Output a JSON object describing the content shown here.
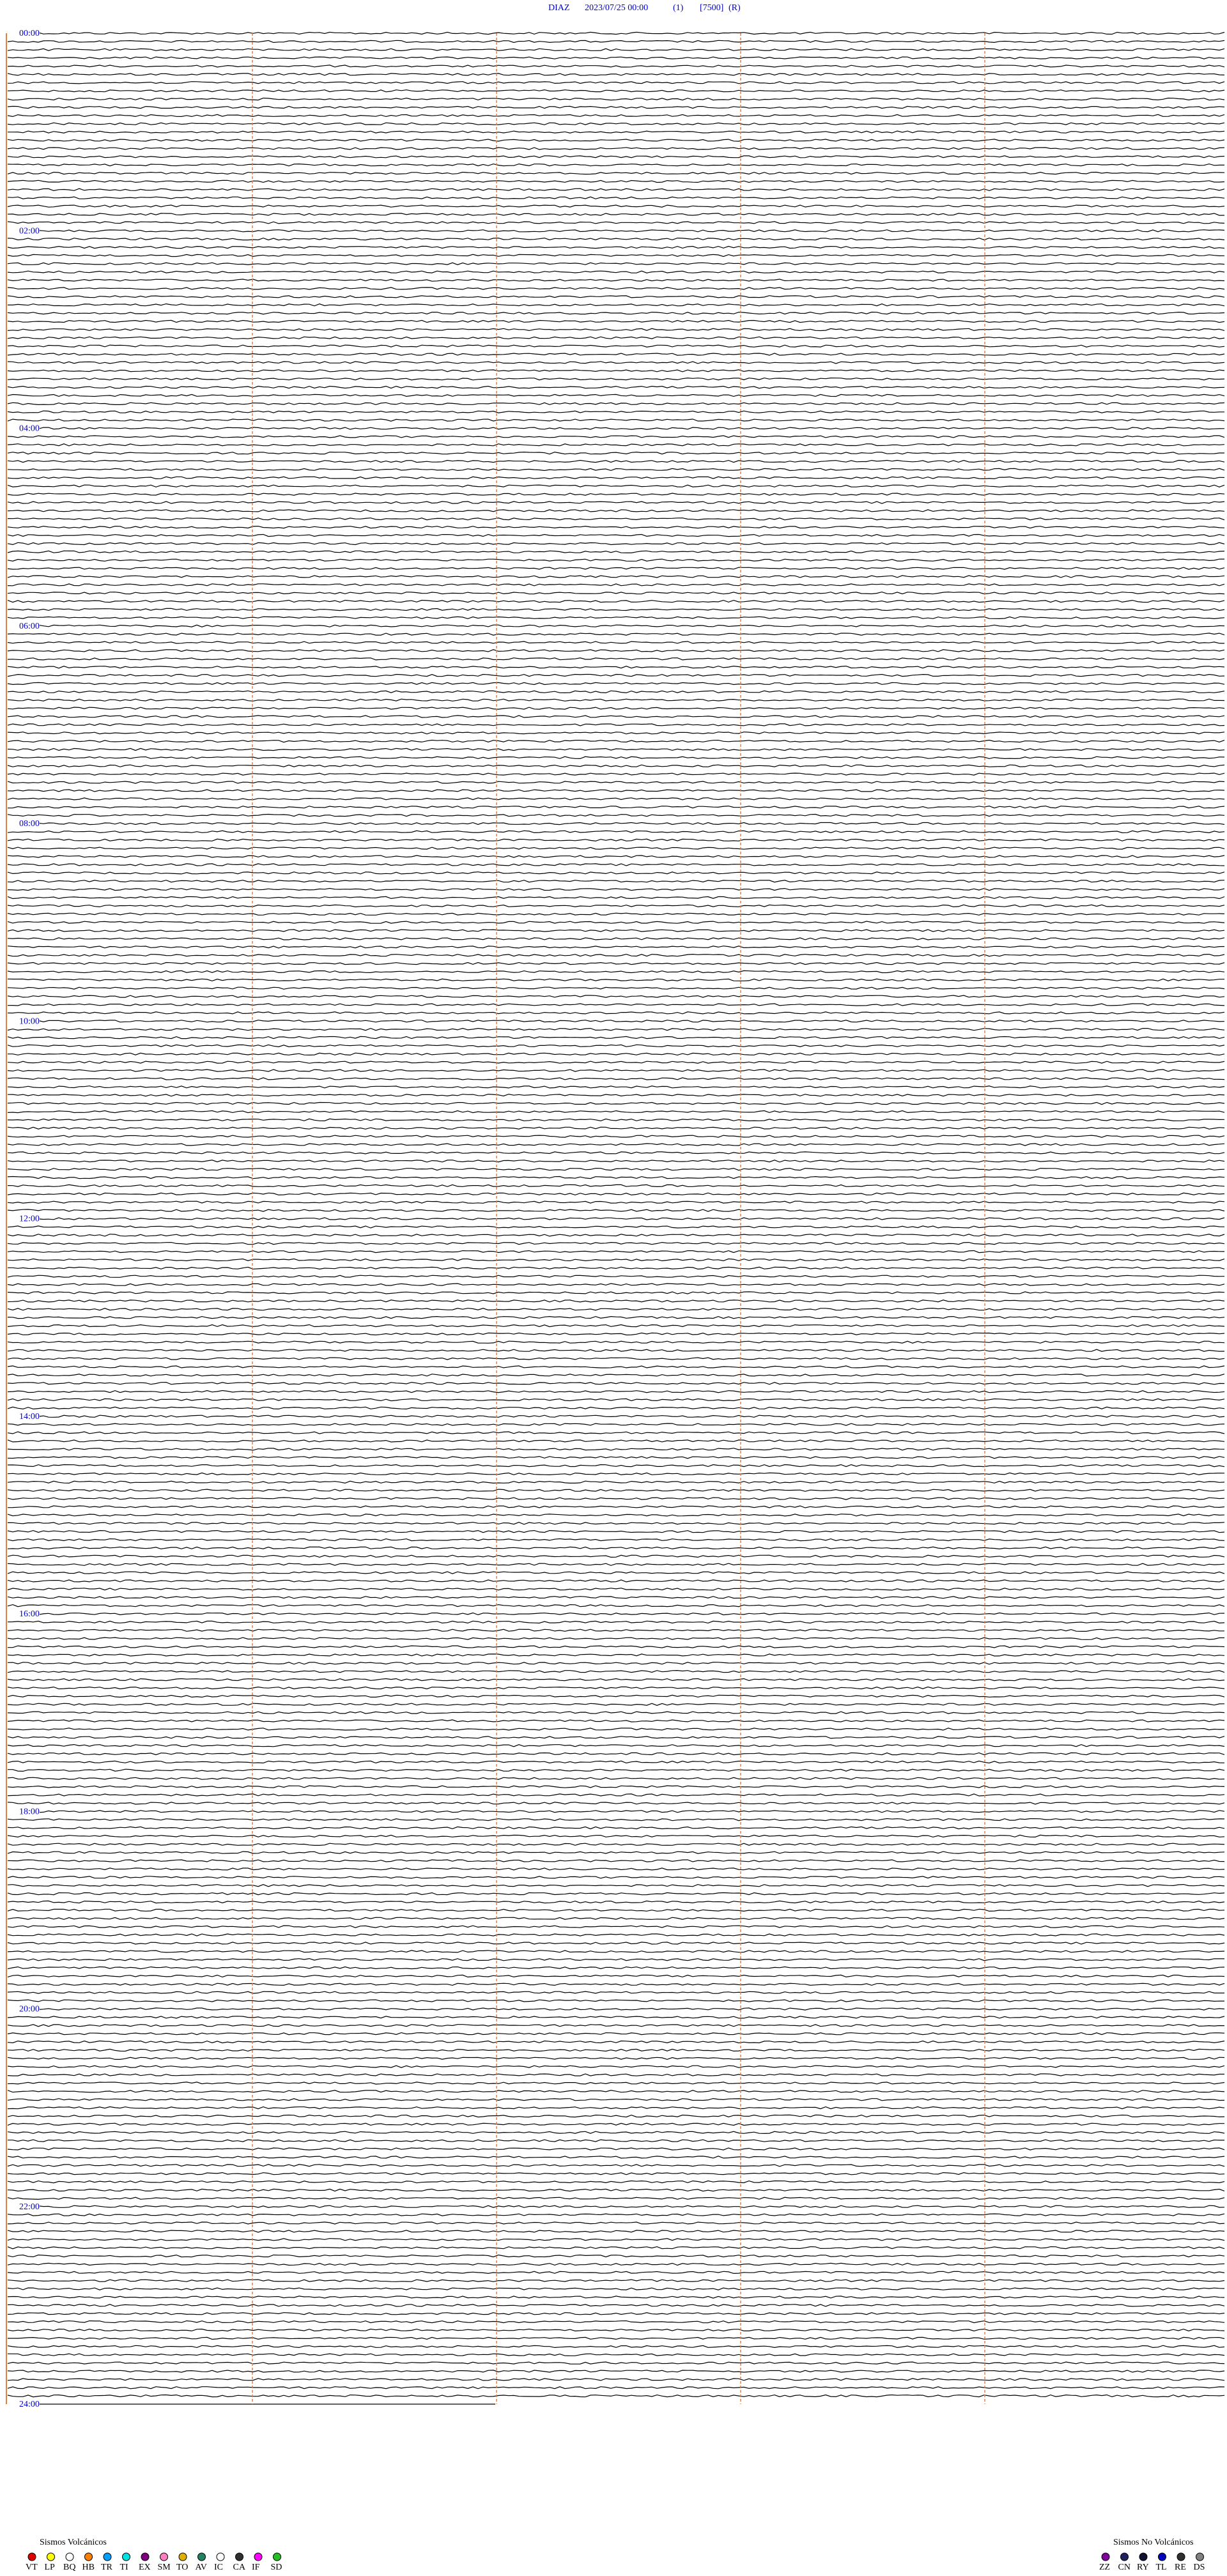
{
  "header": {
    "station": "DIAZ",
    "datetime": "2023/07/25 00:00",
    "channel": "(1)",
    "scale": "[7500]",
    "mode": "(R)"
  },
  "time_labels": [
    "00:00",
    "02:00",
    "04:00",
    "06:00",
    "08:00",
    "10:00",
    "12:00",
    "14:00",
    "16:00",
    "18:00",
    "20:00",
    "22:00",
    "24:00"
  ],
  "legend": [
    {
      "title": "Sismos Volcánicos",
      "items": [
        {
          "code": "VT",
          "color": "#e00000"
        },
        {
          "code": "LP",
          "color": "#ffff00"
        },
        {
          "code": "BQ",
          "color": "#ffffff"
        },
        {
          "code": "HB",
          "color": "#ff8000"
        },
        {
          "code": "TR",
          "color": "#00a0ff"
        },
        {
          "code": "TI",
          "color": "#00e0e0"
        },
        {
          "code": "EX",
          "color": "#800080"
        },
        {
          "code": "SM",
          "color": "#ff80c0"
        },
        {
          "code": "TO",
          "color": "#e0b000"
        },
        {
          "code": "AV",
          "color": "#208060"
        },
        {
          "code": "IC",
          "color": "#ffffff"
        },
        {
          "code": "CA",
          "color": "#303030"
        },
        {
          "code": "IF",
          "color": "#ff00ff"
        },
        {
          "code": "SD",
          "color": "#20c020"
        }
      ]
    },
    {
      "title": "Sismos No Volcánicos",
      "items": [
        {
          "code": "ZZ",
          "color": "#8000a0"
        },
        {
          "code": "CN",
          "color": "#202060"
        },
        {
          "code": "RY",
          "color": "#101030"
        },
        {
          "code": "TL",
          "color": "#0000c0"
        },
        {
          "code": "RE",
          "color": "#303030"
        },
        {
          "code": "DS",
          "color": "#808080"
        }
      ]
    }
  ]
}
